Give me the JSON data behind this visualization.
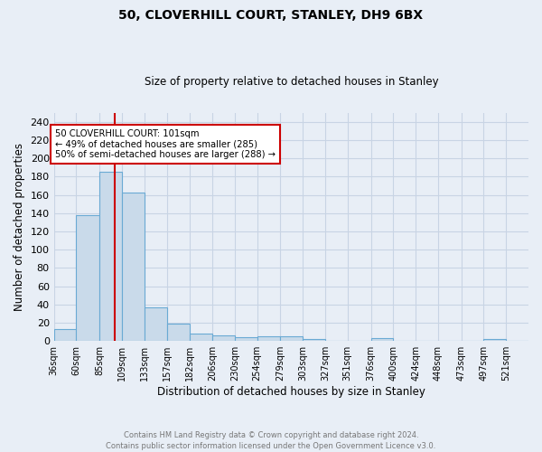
{
  "title1": "50, CLOVERHILL COURT, STANLEY, DH9 6BX",
  "title2": "Size of property relative to detached houses in Stanley",
  "xlabel": "Distribution of detached houses by size in Stanley",
  "ylabel": "Number of detached properties",
  "bin_labels": [
    "36sqm",
    "60sqm",
    "85sqm",
    "109sqm",
    "133sqm",
    "157sqm",
    "182sqm",
    "206sqm",
    "230sqm",
    "254sqm",
    "279sqm",
    "303sqm",
    "327sqm",
    "351sqm",
    "376sqm",
    "400sqm",
    "424sqm",
    "448sqm",
    "473sqm",
    "497sqm",
    "521sqm"
  ],
  "bar_heights": [
    13,
    138,
    185,
    162,
    37,
    19,
    8,
    6,
    4,
    5,
    5,
    2,
    0,
    0,
    3,
    0,
    0,
    0,
    0,
    2,
    0
  ],
  "bar_color": "#c9daea",
  "bar_edge_color": "#6aaad4",
  "grid_color": "#c8d4e4",
  "background_color": "#e8eef6",
  "vline_x": 101,
  "vline_color": "#cc0000",
  "annotation_text": "50 CLOVERHILL COURT: 101sqm\n← 49% of detached houses are smaller (285)\n50% of semi-detached houses are larger (288) →",
  "annotation_box_color": "#ffffff",
  "annotation_box_edge": "#cc0000",
  "ylim": [
    0,
    250
  ],
  "yticks": [
    0,
    20,
    40,
    60,
    80,
    100,
    120,
    140,
    160,
    180,
    200,
    220,
    240
  ],
  "footnote": "Contains HM Land Registry data © Crown copyright and database right 2024.\nContains public sector information licensed under the Open Government Licence v3.0.",
  "bin_edges": [
    36,
    60,
    85,
    109,
    133,
    157,
    182,
    206,
    230,
    254,
    279,
    303,
    327,
    351,
    376,
    400,
    424,
    448,
    473,
    497,
    521,
    545
  ]
}
